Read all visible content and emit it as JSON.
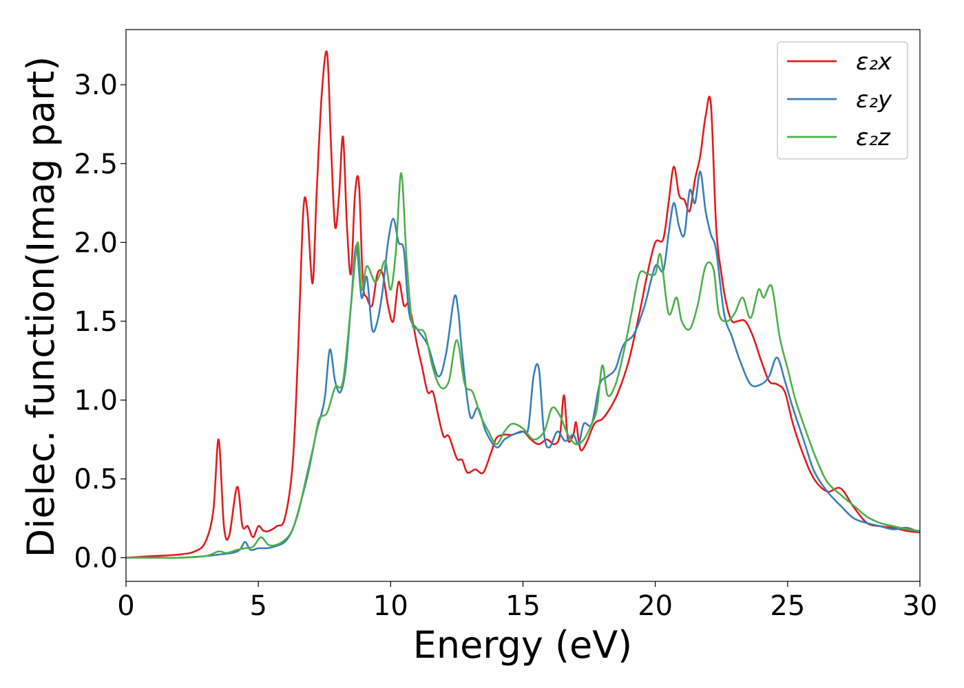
{
  "chart_data": {
    "type": "line",
    "title": "",
    "xlabel": "Energy (eV)",
    "ylabel": "Dielec. function(Imag part)",
    "xlim": [
      0,
      30
    ],
    "ylim": [
      -0.15,
      3.35
    ],
    "xticks": [
      0,
      5,
      10,
      15,
      20,
      25,
      30
    ],
    "xtick_labels": [
      "0",
      "5",
      "10",
      "15",
      "20",
      "25",
      "30"
    ],
    "yticks": [
      0.0,
      0.5,
      1.0,
      1.5,
      2.0,
      2.5,
      3.0
    ],
    "ytick_labels": [
      "0.0",
      "0.5",
      "1.0",
      "1.5",
      "2.0",
      "2.5",
      "3.0"
    ],
    "grid": false,
    "legend_position": "top-right",
    "series": [
      {
        "name": "ε₂x",
        "color": "#e31a1c",
        "x": [
          0,
          1,
          2,
          2.6,
          3.0,
          3.3,
          3.5,
          3.7,
          3.9,
          4.2,
          4.4,
          4.6,
          4.8,
          5.0,
          5.2,
          5.4,
          5.7,
          6.0,
          6.3,
          6.5,
          6.7,
          6.85,
          7.05,
          7.2,
          7.4,
          7.6,
          7.75,
          7.9,
          8.05,
          8.2,
          8.35,
          8.5,
          8.65,
          8.8,
          8.95,
          9.1,
          9.3,
          9.5,
          9.7,
          9.9,
          10.1,
          10.3,
          10.5,
          10.7,
          11.0,
          11.2,
          11.4,
          11.6,
          11.8,
          12.0,
          12.2,
          12.5,
          12.7,
          12.9,
          13.2,
          13.5,
          13.8,
          14.0,
          14.3,
          14.6,
          15.0,
          15.3,
          15.6,
          15.9,
          16.2,
          16.4,
          16.55,
          16.7,
          16.9,
          17.0,
          17.1,
          17.2,
          17.4,
          17.7,
          18.0,
          18.3,
          18.6,
          19.0,
          19.4,
          19.7,
          20.0,
          20.3,
          20.5,
          20.7,
          20.9,
          21.1,
          21.3,
          21.5,
          21.7,
          21.9,
          22.1,
          22.3,
          22.5,
          22.7,
          22.9,
          23.1,
          23.4,
          23.7,
          24.0,
          24.3,
          24.6,
          24.9,
          25.2,
          25.6,
          26.0,
          26.5,
          27.0,
          27.5,
          28.0,
          28.5,
          29.0,
          29.5,
          30.0
        ],
        "y": [
          0.0,
          0.01,
          0.02,
          0.04,
          0.1,
          0.3,
          0.75,
          0.2,
          0.14,
          0.45,
          0.2,
          0.2,
          0.13,
          0.2,
          0.17,
          0.17,
          0.2,
          0.25,
          0.6,
          1.3,
          2.2,
          2.2,
          1.74,
          2.3,
          2.95,
          3.2,
          2.6,
          2.1,
          2.3,
          2.67,
          2.1,
          1.8,
          2.3,
          2.38,
          1.75,
          1.65,
          1.6,
          1.8,
          1.8,
          1.6,
          1.5,
          1.75,
          1.6,
          1.6,
          1.35,
          1.2,
          1.05,
          1.05,
          0.9,
          0.77,
          0.77,
          0.63,
          0.62,
          0.54,
          0.56,
          0.54,
          0.67,
          0.76,
          0.78,
          0.78,
          0.8,
          0.75,
          0.72,
          0.75,
          0.72,
          0.78,
          1.03,
          0.75,
          0.78,
          0.86,
          0.75,
          0.68,
          0.73,
          0.85,
          0.88,
          0.95,
          1.05,
          1.25,
          1.55,
          1.8,
          2.0,
          2.02,
          2.25,
          2.48,
          2.3,
          2.27,
          2.2,
          2.4,
          2.55,
          2.8,
          2.88,
          2.1,
          1.8,
          1.6,
          1.5,
          1.5,
          1.5,
          1.4,
          1.25,
          1.12,
          1.1,
          1.05,
          0.85,
          0.65,
          0.5,
          0.42,
          0.44,
          0.32,
          0.22,
          0.2,
          0.19,
          0.17,
          0.16
        ]
      },
      {
        "name": "ε₂y",
        "color": "#377eb8",
        "x": [
          0,
          1,
          2,
          3.0,
          3.5,
          4.0,
          4.3,
          4.5,
          4.7,
          5.0,
          5.3,
          5.6,
          6.0,
          6.3,
          6.6,
          6.9,
          7.2,
          7.5,
          7.7,
          7.9,
          8.1,
          8.3,
          8.5,
          8.7,
          8.9,
          9.1,
          9.3,
          9.5,
          9.7,
          9.9,
          10.1,
          10.3,
          10.5,
          10.7,
          11.0,
          11.4,
          11.8,
          12.1,
          12.4,
          12.55,
          12.7,
          13.0,
          13.3,
          13.6,
          14.0,
          14.3,
          14.6,
          15.0,
          15.2,
          15.4,
          15.6,
          15.8,
          16.0,
          16.3,
          16.6,
          16.9,
          17.1,
          17.3,
          17.6,
          17.9,
          18.2,
          18.5,
          18.8,
          19.2,
          19.6,
          20.0,
          20.3,
          20.5,
          20.7,
          20.9,
          21.1,
          21.3,
          21.5,
          21.7,
          21.9,
          22.1,
          22.3,
          22.6,
          22.9,
          23.2,
          23.6,
          24.0,
          24.3,
          24.6,
          24.9,
          25.2,
          25.6,
          26.0,
          26.5,
          27.0,
          27.5,
          28.0,
          28.5,
          29.0,
          29.5,
          30.0
        ],
        "y": [
          0.0,
          0.0,
          0.0,
          0.01,
          0.02,
          0.03,
          0.05,
          0.1,
          0.05,
          0.06,
          0.06,
          0.07,
          0.1,
          0.18,
          0.35,
          0.55,
          0.8,
          1.0,
          1.32,
          1.12,
          1.05,
          1.2,
          1.6,
          1.98,
          1.65,
          1.78,
          1.45,
          1.5,
          1.7,
          2.0,
          2.15,
          2.0,
          1.95,
          1.55,
          1.45,
          1.35,
          1.15,
          1.3,
          1.65,
          1.57,
          1.3,
          0.9,
          0.95,
          0.8,
          0.7,
          0.75,
          0.78,
          0.8,
          0.82,
          1.15,
          1.2,
          0.78,
          0.7,
          0.8,
          0.74,
          0.78,
          0.72,
          0.85,
          0.85,
          1.1,
          1.15,
          1.2,
          1.35,
          1.42,
          1.6,
          1.85,
          1.82,
          2.05,
          2.25,
          2.1,
          2.05,
          2.33,
          2.25,
          2.45,
          2.2,
          2.05,
          1.95,
          1.55,
          1.4,
          1.25,
          1.1,
          1.1,
          1.15,
          1.27,
          1.12,
          0.95,
          0.75,
          0.55,
          0.42,
          0.33,
          0.25,
          0.22,
          0.2,
          0.18,
          0.19,
          0.16
        ]
      },
      {
        "name": "ε₂z",
        "color": "#4daf4a",
        "x": [
          0,
          1,
          2,
          3.0,
          3.5,
          3.8,
          4.2,
          4.5,
          4.8,
          5.1,
          5.4,
          5.8,
          6.2,
          6.5,
          6.8,
          7.1,
          7.3,
          7.6,
          7.9,
          8.2,
          8.5,
          8.75,
          8.9,
          9.1,
          9.4,
          9.6,
          9.8,
          10.0,
          10.2,
          10.4,
          10.6,
          10.8,
          11.0,
          11.3,
          11.6,
          11.9,
          12.2,
          12.5,
          12.8,
          13.1,
          13.4,
          13.7,
          14.0,
          14.3,
          14.6,
          15.0,
          15.4,
          15.8,
          16.1,
          16.4,
          16.7,
          17.0,
          17.3,
          17.6,
          17.8,
          18.0,
          18.2,
          18.5,
          18.8,
          19.1,
          19.4,
          19.7,
          20.0,
          20.2,
          20.5,
          20.8,
          21.0,
          21.3,
          21.6,
          21.9,
          22.2,
          22.4,
          22.7,
          23.0,
          23.3,
          23.6,
          23.9,
          24.1,
          24.4,
          24.7,
          25.0,
          25.3,
          25.7,
          26.1,
          26.5,
          27.0,
          27.5,
          28.0,
          28.5,
          29.0,
          29.5,
          30.0
        ],
        "y": [
          0.0,
          0.0,
          0.0,
          0.01,
          0.04,
          0.03,
          0.05,
          0.06,
          0.07,
          0.13,
          0.08,
          0.09,
          0.15,
          0.28,
          0.5,
          0.72,
          0.88,
          0.92,
          1.08,
          1.12,
          1.6,
          2.0,
          1.7,
          1.85,
          1.75,
          1.8,
          1.88,
          1.7,
          1.95,
          2.44,
          1.9,
          1.5,
          1.45,
          1.42,
          1.2,
          1.08,
          1.12,
          1.38,
          1.1,
          1.05,
          0.9,
          0.8,
          0.72,
          0.8,
          0.85,
          0.82,
          0.75,
          0.8,
          0.95,
          0.9,
          0.78,
          0.72,
          0.75,
          0.85,
          0.95,
          1.22,
          1.03,
          1.1,
          1.3,
          1.55,
          1.8,
          1.8,
          1.8,
          1.92,
          1.55,
          1.65,
          1.5,
          1.45,
          1.6,
          1.85,
          1.83,
          1.55,
          1.5,
          1.55,
          1.65,
          1.52,
          1.7,
          1.65,
          1.72,
          1.4,
          1.2,
          1.0,
          0.8,
          0.62,
          0.48,
          0.4,
          0.33,
          0.26,
          0.22,
          0.2,
          0.18,
          0.17
        ]
      }
    ]
  }
}
